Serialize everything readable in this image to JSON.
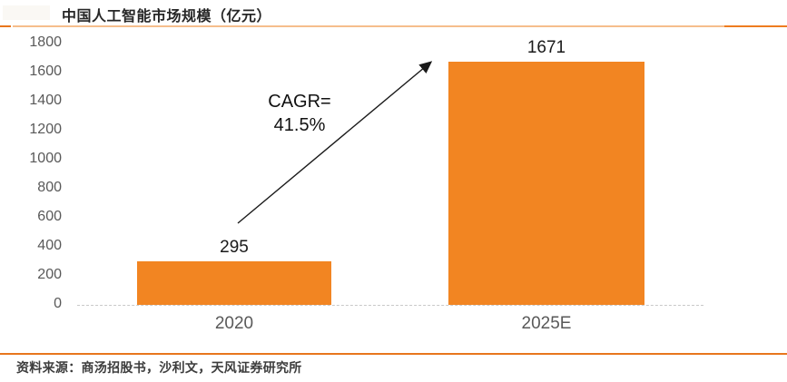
{
  "title": "中国人工智能市场规模（亿元）",
  "source": "资料来源：商汤招股书，沙利文，天风证券研究所",
  "annotation": {
    "line1": "CAGR=",
    "line2": "41.5%"
  },
  "chart_data": {
    "type": "bar",
    "title": "中国人工智能市场规模（亿元）",
    "categories": [
      "2020",
      "2025E"
    ],
    "values": [
      295,
      1671
    ],
    "xlabel": "",
    "ylabel": "",
    "ylim": [
      0,
      1800
    ],
    "yticks": [
      0,
      200,
      400,
      600,
      800,
      1000,
      1200,
      1400,
      1600,
      1800
    ],
    "grid": false,
    "legend": false,
    "annotation_text": "CAGR=41.5%",
    "bar_color": "#f28522",
    "colors": {
      "bar_orange": "#f28522",
      "rule_light_orange": "#f6be8c",
      "rule_dark_orange": "#e8761d",
      "axis_gray": "#c9c9c9",
      "tick_label_gray": "#595959",
      "text_dark": "#1a1a1a"
    }
  }
}
